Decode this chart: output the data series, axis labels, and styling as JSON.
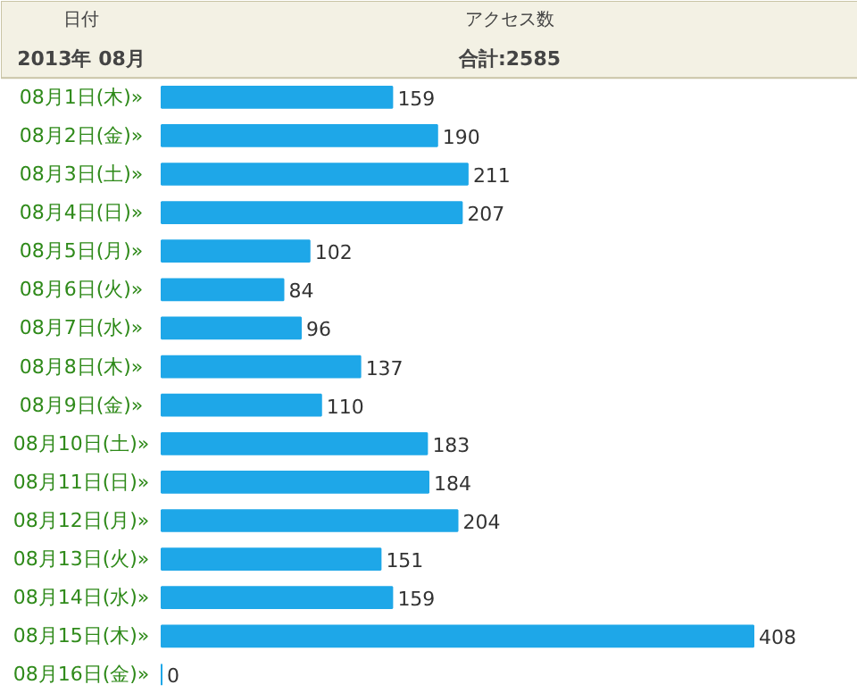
{
  "chart_data": {
    "type": "bar",
    "orientation": "horizontal",
    "ylabel": "日付",
    "xlabel": "アクセス数",
    "annotations": [
      "2013年 08月",
      "合計:2585"
    ],
    "categories": [
      "08月1日(木)»",
      "08月2日(金)»",
      "08月3日(土)»",
      "08月4日(日)»",
      "08月5日(月)»",
      "08月6日(火)»",
      "08月7日(水)»",
      "08月8日(木)»",
      "08月9日(金)»",
      "08月10日(土)»",
      "08月11日(日)»",
      "08月12日(月)»",
      "08月13日(火)»",
      "08月14日(水)»",
      "08月15日(木)»",
      "08月16日(金)»"
    ],
    "values": [
      159,
      190,
      211,
      207,
      102,
      84,
      96,
      137,
      110,
      183,
      184,
      204,
      151,
      159,
      408,
      0
    ],
    "color": "#1ea7e8",
    "xlim": [
      0,
      480
    ],
    "data_labels": true,
    "tick_labels": "y",
    "grid": false
  }
}
